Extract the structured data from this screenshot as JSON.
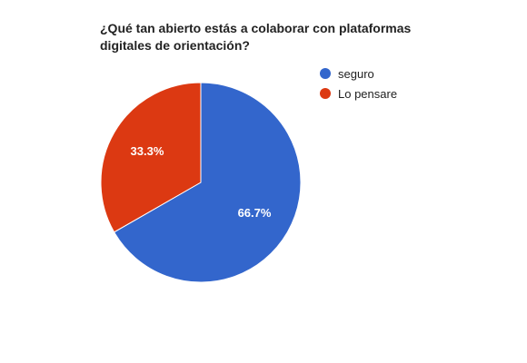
{
  "chart_data": {
    "type": "pie",
    "title": "¿Qué tan abierto estás a colaborar con plataformas digitales de orientación?",
    "slices": [
      {
        "label": "seguro",
        "value": 66.7,
        "display": "66.7%",
        "color": "#3366cc"
      },
      {
        "label": "Lo pensare",
        "value": 33.3,
        "display": "33.3%",
        "color": "#dc3912"
      }
    ],
    "legend_position": "right"
  }
}
